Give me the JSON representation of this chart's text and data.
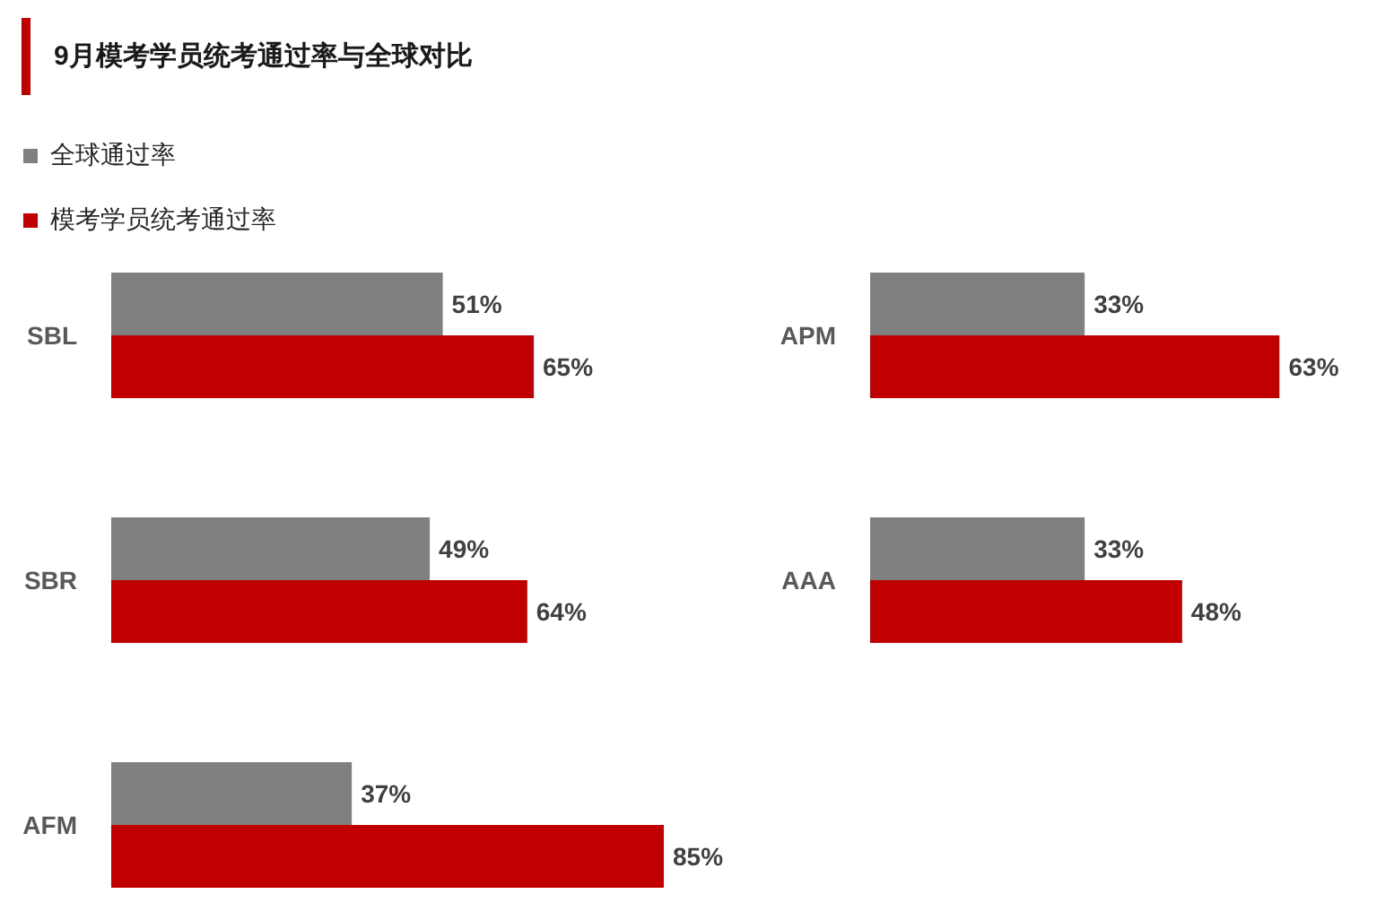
{
  "chart_data": [
    {
      "type": "bar",
      "orientation": "horizontal",
      "title": "9月模考学员统考通过率与全球对比",
      "legend": "top left",
      "categories": [
        "SBL",
        "SBR",
        "AFM"
      ],
      "series": [
        {
          "name": "全球通过率",
          "color": "#808080",
          "values": [
            51,
            49,
            37
          ],
          "value_labels": [
            "51%",
            "49%",
            "37%"
          ]
        },
        {
          "name": "模考学员统考通过率",
          "color": "#c00000",
          "values": [
            65,
            64,
            85
          ],
          "value_labels": [
            "65%",
            "64%",
            "85%"
          ]
        }
      ]
    },
    {
      "type": "bar",
      "orientation": "horizontal",
      "categories": [
        "APM",
        "AAA"
      ],
      "series": [
        {
          "color": "#808080",
          "values": [
            33,
            33
          ],
          "value_labels": [
            "33%",
            "33%"
          ]
        },
        {
          "color": "#c00000",
          "values": [
            63,
            48
          ],
          "value_labels": [
            "63%",
            "48%"
          ]
        }
      ]
    }
  ]
}
